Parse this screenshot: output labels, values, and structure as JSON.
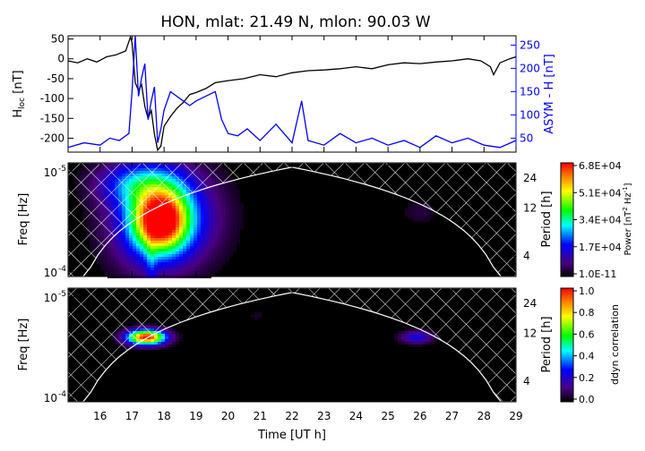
{
  "title": "HON, mlat:   21.49 N, mlon:   90.03 W",
  "chart_data": [
    {
      "type": "line",
      "panel": "timeseries",
      "xlim": [
        15,
        29
      ],
      "series": [
        {
          "name": "H_loc",
          "axis": "left",
          "color": "#000000",
          "x": [
            15.0,
            15.3,
            15.6,
            15.9,
            16.2,
            16.5,
            16.8,
            16.95,
            17.0,
            17.1,
            17.2,
            17.3,
            17.4,
            17.5,
            17.6,
            17.7,
            17.8,
            17.9,
            18.0,
            18.2,
            18.4,
            18.6,
            18.8,
            19.0,
            19.3,
            19.6,
            20.0,
            20.5,
            21.0,
            21.5,
            22.0,
            22.5,
            23.0,
            23.5,
            24.0,
            24.5,
            25.0,
            25.5,
            26.0,
            26.5,
            27.0,
            27.5,
            27.9,
            28.2,
            28.3,
            28.5,
            28.8,
            29.0
          ],
          "y": [
            -5,
            -10,
            0,
            -8,
            5,
            10,
            20,
            55,
            40,
            -60,
            -80,
            -65,
            -120,
            -150,
            -130,
            -190,
            -230,
            -220,
            -170,
            -145,
            -125,
            -110,
            -90,
            -85,
            -75,
            -60,
            -55,
            -50,
            -40,
            -45,
            -35,
            -30,
            -28,
            -25,
            -20,
            -25,
            -15,
            -10,
            -12,
            -8,
            -5,
            0,
            -5,
            -20,
            -40,
            -10,
            0,
            5
          ]
        },
        {
          "name": "ASYM-H",
          "axis": "right",
          "color": "#0000ff",
          "x": [
            15.0,
            15.5,
            16.0,
            16.3,
            16.6,
            16.9,
            17.0,
            17.1,
            17.2,
            17.3,
            17.4,
            17.5,
            17.6,
            17.7,
            17.8,
            17.9,
            18.0,
            18.2,
            18.5,
            18.8,
            19.0,
            19.3,
            19.6,
            19.8,
            20.0,
            20.3,
            20.6,
            21.0,
            21.5,
            22.0,
            22.3,
            22.5,
            23.0,
            23.5,
            24.0,
            24.5,
            25.0,
            25.5,
            26.0,
            26.5,
            27.0,
            27.5,
            28.0,
            28.5,
            29.0
          ],
          "y": [
            30,
            40,
            35,
            50,
            45,
            60,
            150,
            270,
            140,
            180,
            210,
            90,
            130,
            160,
            40,
            70,
            110,
            150,
            135,
            120,
            130,
            140,
            150,
            90,
            60,
            55,
            70,
            45,
            80,
            40,
            130,
            45,
            35,
            60,
            40,
            50,
            35,
            45,
            30,
            55,
            40,
            50,
            35,
            30,
            45
          ]
        }
      ],
      "ylabel_left": "H",
      "ylabel_left_sub": "loc",
      "ylabel_left_unit": " [nT]",
      "ylim_left": [
        -235,
        58
      ],
      "yticks_left": [
        50,
        0,
        -50,
        -100,
        -150,
        -200
      ],
      "ylabel_right": "ASYM - H [nT]",
      "ylim_right": [
        20,
        270
      ],
      "yticks_right": [
        250,
        200,
        150,
        100,
        50
      ]
    },
    {
      "type": "heatmap",
      "panel": "wavelet_power",
      "xlim": [
        15,
        29
      ],
      "ylabel": "Freq [Hz]",
      "ylabel_right": "Period [h]",
      "period_ticks": [
        24,
        12,
        4
      ],
      "freq_ticks": [
        "10",
        "10"
      ],
      "freq_tick_exps": [
        "-5",
        "-4"
      ],
      "blobs": [
        {
          "t": 17.9,
          "period": 9,
          "amp": 0.78,
          "st": 0.55,
          "sp": 0.45
        },
        {
          "t": 17.7,
          "period": 9,
          "amp": 0.35,
          "st": 0.95,
          "sp": 0.8
        },
        {
          "t": 18.5,
          "period": 10,
          "amp": 0.18,
          "st": 1.0,
          "sp": 0.7
        },
        {
          "t": 17.2,
          "period": 21,
          "amp": 0.28,
          "st": 0.9,
          "sp": 0.35
        },
        {
          "t": 17.6,
          "period": 3,
          "amp": 0.12,
          "st": 0.12,
          "sp": 0.6
        },
        {
          "t": 26.0,
          "period": 11,
          "amp": 0.06,
          "st": 0.4,
          "sp": 0.2
        }
      ],
      "colorbar": {
        "label": "Power [nT",
        "label_sup": "2",
        "label_mid": " Hz",
        "label_sup2": "-1",
        "label_end": "]",
        "ticks": [
          "6.8E+04",
          "5.1E+04",
          "3.4E+04",
          "1.7E+04",
          "1.0E-11"
        ]
      }
    },
    {
      "type": "heatmap",
      "panel": "ddyn_correlation",
      "xlim": [
        15,
        29
      ],
      "ylabel": "Freq [Hz]",
      "ylabel_right": "Period [h]",
      "period_ticks": [
        24,
        12,
        4
      ],
      "freq_ticks": [
        "10",
        "10"
      ],
      "freq_tick_exps": [
        "-5",
        "-4"
      ],
      "blobs": [
        {
          "t": 17.45,
          "period": 11,
          "amp": 1.0,
          "st": 0.42,
          "sp": 0.12
        },
        {
          "t": 25.9,
          "period": 11,
          "amp": 0.25,
          "st": 0.35,
          "sp": 0.1
        },
        {
          "t": 20.9,
          "period": 18,
          "amp": 0.04,
          "st": 0.2,
          "sp": 0.1
        }
      ],
      "colorbar": {
        "label": "ddyn correlation",
        "ticks": [
          "1.0",
          "0.8",
          "0.6",
          "0.4",
          "0.2",
          "0.0"
        ]
      }
    }
  ],
  "xaxis": {
    "label": "Time [UT h]",
    "ticks": [
      "16",
      "17",
      "18",
      "19",
      "20",
      "21",
      "22",
      "23",
      "24",
      "25",
      "26",
      "27",
      "28",
      "29"
    ]
  }
}
